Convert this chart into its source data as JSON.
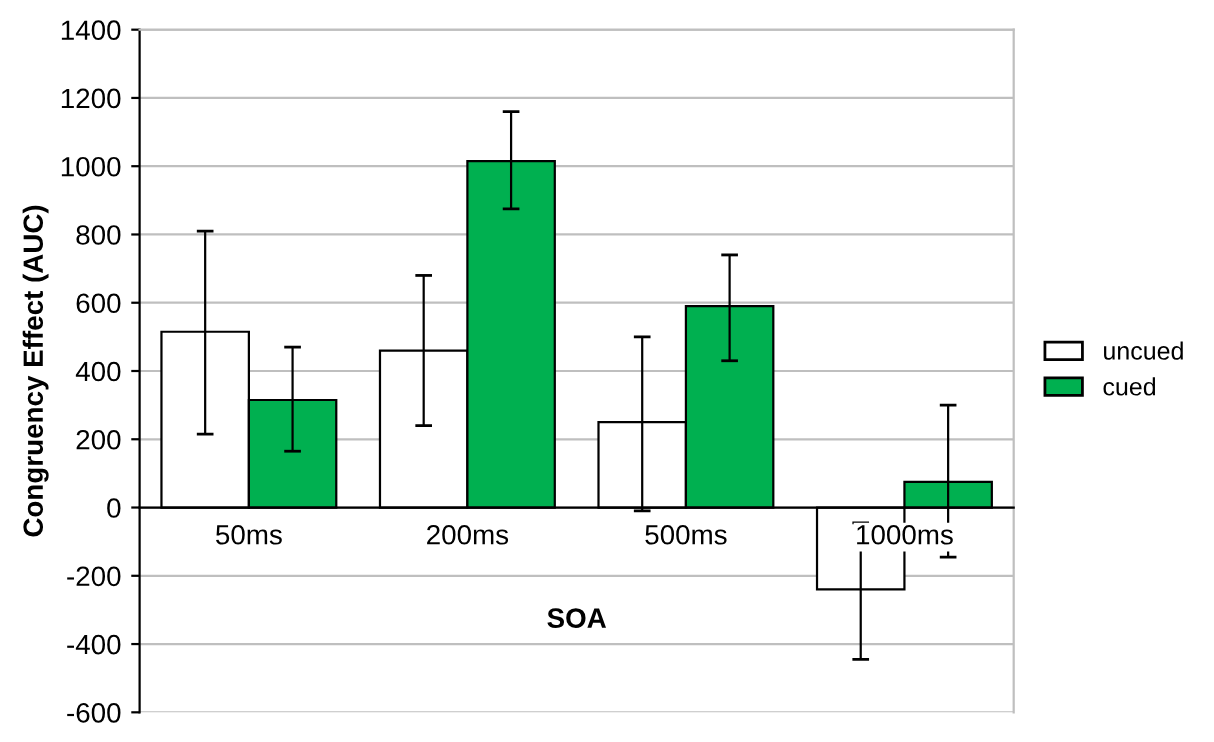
{
  "chart_data": {
    "type": "bar",
    "xlabel": "SOA",
    "ylabel": "Congruency Effect (AUC)",
    "categories": [
      "50ms",
      "200ms",
      "500ms",
      "1000ms"
    ],
    "series": [
      {
        "name": "uncued",
        "color": "#ffffff",
        "values": [
          515,
          460,
          250,
          -240
        ],
        "errors": [
          [
            215,
            810
          ],
          [
            240,
            680
          ],
          [
            -10,
            500
          ],
          [
            -445,
            -45
          ]
        ]
      },
      {
        "name": "cued",
        "color": "#00b050",
        "values": [
          315,
          1015,
          590,
          75
        ],
        "errors": [
          [
            165,
            470
          ],
          [
            875,
            1160
          ],
          [
            430,
            740
          ],
          [
            -145,
            300
          ]
        ]
      }
    ],
    "ylim": [
      -600,
      1400
    ],
    "yticks": [
      -600,
      -400,
      -200,
      0,
      200,
      400,
      600,
      800,
      1000,
      1200,
      1400
    ],
    "grid": "y",
    "legend": "right"
  }
}
